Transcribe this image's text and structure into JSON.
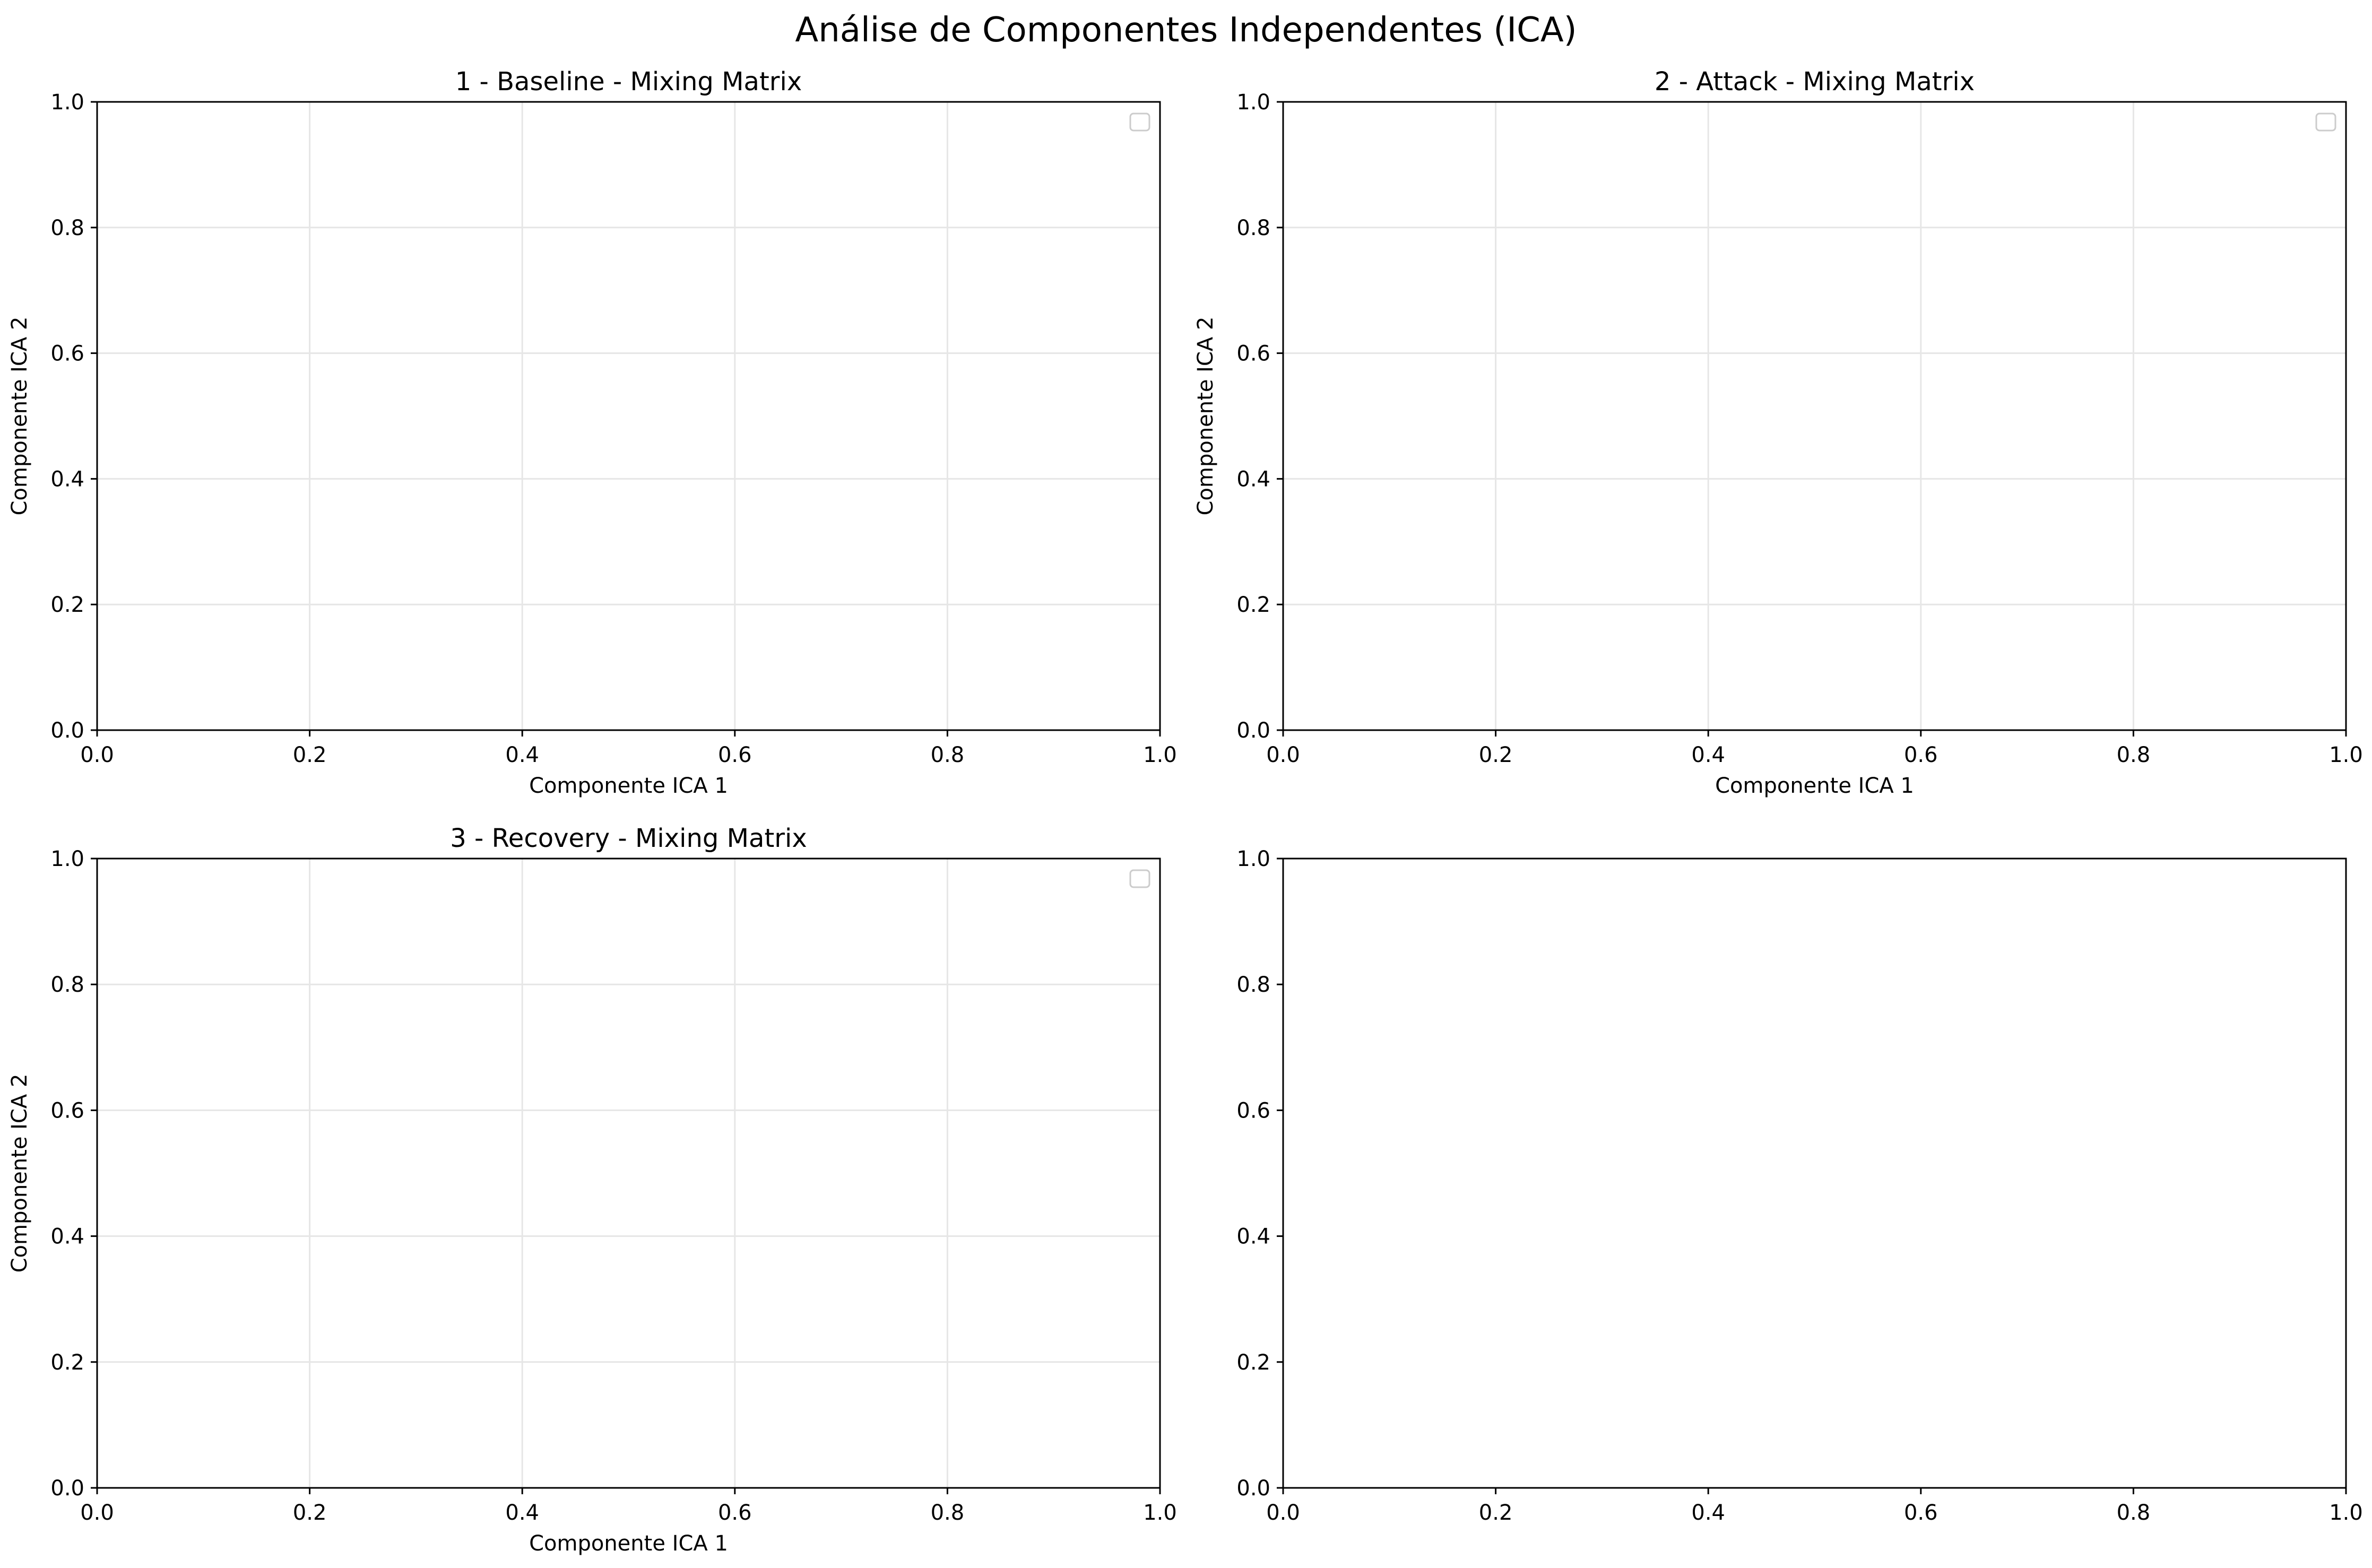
{
  "figure": {
    "suptitle": "Análise de Componentes Independentes (ICA)"
  },
  "chart_data": [
    {
      "type": "scatter",
      "title": "1 - Baseline - Mixing Matrix",
      "xlabel": "Componente ICA 1",
      "ylabel": "Componente ICA 2",
      "xlim": [
        0,
        1
      ],
      "ylim": [
        0,
        1
      ],
      "xticks": [
        "0.0",
        "0.2",
        "0.4",
        "0.6",
        "0.8",
        "1.0"
      ],
      "yticks": [
        "0.0",
        "0.2",
        "0.4",
        "0.6",
        "0.8",
        "1.0"
      ],
      "grid": true,
      "legend": "top-right",
      "series": []
    },
    {
      "type": "scatter",
      "title": "2 - Attack - Mixing Matrix",
      "xlabel": "Componente ICA 1",
      "ylabel": "Componente ICA 2",
      "xlim": [
        0,
        1
      ],
      "ylim": [
        0,
        1
      ],
      "xticks": [
        "0.0",
        "0.2",
        "0.4",
        "0.6",
        "0.8",
        "1.0"
      ],
      "yticks": [
        "0.0",
        "0.2",
        "0.4",
        "0.6",
        "0.8",
        "1.0"
      ],
      "grid": true,
      "legend": "top-right",
      "series": []
    },
    {
      "type": "scatter",
      "title": "3 - Recovery - Mixing Matrix",
      "xlabel": "Componente ICA 1",
      "ylabel": "Componente ICA 2",
      "xlim": [
        0,
        1
      ],
      "ylim": [
        0,
        1
      ],
      "xticks": [
        "0.0",
        "0.2",
        "0.4",
        "0.6",
        "0.8",
        "1.0"
      ],
      "yticks": [
        "0.0",
        "0.2",
        "0.4",
        "0.6",
        "0.8",
        "1.0"
      ],
      "grid": true,
      "legend": "top-right",
      "series": []
    },
    {
      "type": "scatter",
      "title": "",
      "xlabel": "",
      "ylabel": "",
      "xlim": [
        0,
        1
      ],
      "ylim": [
        0,
        1
      ],
      "xticks": [
        "0.0",
        "0.2",
        "0.4",
        "0.6",
        "0.8",
        "1.0"
      ],
      "yticks": [
        "0.0",
        "0.2",
        "0.4",
        "0.6",
        "0.8",
        "1.0"
      ],
      "grid": false,
      "legend": "none",
      "series": []
    }
  ]
}
